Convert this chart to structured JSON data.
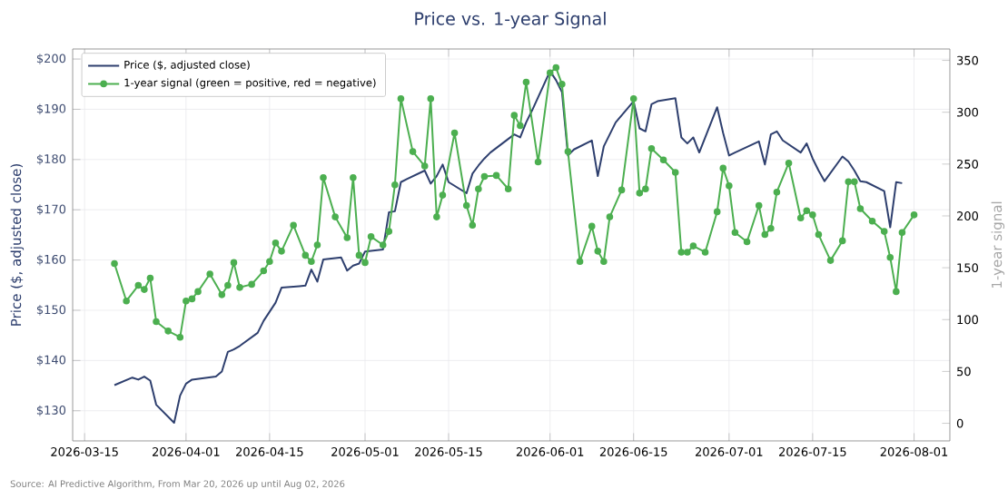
{
  "chart_data": {
    "type": "line",
    "title": "Price vs. 1-year Signal",
    "ylabel": "Price ($, adjusted close)",
    "y2label": "1-year signal",
    "xlim": [
      "2026-03-13",
      "2026-08-07"
    ],
    "xticks": [
      "2026-03-15",
      "2026-04-01",
      "2026-04-15",
      "2026-05-01",
      "2026-05-15",
      "2026-06-01",
      "2026-06-15",
      "2026-07-01",
      "2026-07-15",
      "2026-08-01"
    ],
    "ylim": [
      124,
      202
    ],
    "yticks": [
      {
        "value": 130,
        "label": "$130"
      },
      {
        "value": 140,
        "label": "$140"
      },
      {
        "value": 150,
        "label": "$150"
      },
      {
        "value": 160,
        "label": "$160"
      },
      {
        "value": 170,
        "label": "$170"
      },
      {
        "value": 180,
        "label": "$180"
      },
      {
        "value": 190,
        "label": "$190"
      },
      {
        "value": 200,
        "label": "$200"
      }
    ],
    "y2lim": [
      -17,
      361
    ],
    "y2ticks": [
      0,
      50,
      100,
      150,
      200,
      250,
      300,
      350
    ],
    "grid": true,
    "legend": "top left",
    "annotations": [
      "Source: AI Predictive Algorithm, From Mar 20, 2026 up until Aug 02, 2026"
    ],
    "series": [
      {
        "name": "Price ($, adjusted close)",
        "color": "#2e3f6e",
        "axis": "y",
        "marker": "none",
        "x": [
          "2026-03-20",
          "2026-03-23",
          "2026-03-24",
          "2026-03-25",
          "2026-03-26",
          "2026-03-27",
          "2026-03-30",
          "2026-03-31",
          "2026-04-01",
          "2026-04-02",
          "2026-04-06",
          "2026-04-07",
          "2026-04-08",
          "2026-04-09",
          "2026-04-10",
          "2026-04-13",
          "2026-04-14",
          "2026-04-15",
          "2026-04-16",
          "2026-04-17",
          "2026-04-20",
          "2026-04-21",
          "2026-04-22",
          "2026-04-23",
          "2026-04-24",
          "2026-04-27",
          "2026-04-28",
          "2026-04-29",
          "2026-04-30",
          "2026-05-01",
          "2026-05-04",
          "2026-05-05",
          "2026-05-06",
          "2026-05-07",
          "2026-05-08",
          "2026-05-11",
          "2026-05-12",
          "2026-05-13",
          "2026-05-14",
          "2026-05-15",
          "2026-05-18",
          "2026-05-19",
          "2026-05-20",
          "2026-05-21",
          "2026-05-22",
          "2026-05-26",
          "2026-05-27",
          "2026-05-28",
          "2026-05-29",
          "2026-06-01",
          "2026-06-02",
          "2026-06-03",
          "2026-06-04",
          "2026-06-05",
          "2026-06-08",
          "2026-06-09",
          "2026-06-10",
          "2026-06-11",
          "2026-06-12",
          "2026-06-15",
          "2026-06-16",
          "2026-06-17",
          "2026-06-18",
          "2026-06-19",
          "2026-06-22",
          "2026-06-23",
          "2026-06-24",
          "2026-06-25",
          "2026-06-26",
          "2026-06-29",
          "2026-06-30",
          "2026-07-01",
          "2026-07-02",
          "2026-07-06",
          "2026-07-07",
          "2026-07-08",
          "2026-07-09",
          "2026-07-10",
          "2026-07-13",
          "2026-07-14",
          "2026-07-15",
          "2026-07-16",
          "2026-07-17",
          "2026-07-20",
          "2026-07-21",
          "2026-07-22",
          "2026-07-23",
          "2026-07-24",
          "2026-07-27",
          "2026-07-28",
          "2026-07-29",
          "2026-07-30"
        ],
        "values": [
          135.1,
          136.6,
          136.2,
          136.8,
          136.0,
          131.2,
          127.6,
          133.0,
          135.4,
          136.2,
          136.8,
          137.8,
          141.7,
          142.2,
          142.9,
          145.5,
          147.9,
          149.7,
          151.5,
          154.5,
          154.8,
          154.9,
          158.1,
          155.7,
          160.1,
          160.5,
          157.9,
          158.9,
          159.3,
          161.7,
          162.1,
          169.5,
          169.7,
          175.5,
          176.1,
          177.8,
          175.2,
          176.7,
          179.0,
          175.5,
          173.3,
          177.2,
          178.8,
          180.2,
          181.4,
          185.0,
          184.4,
          187.4,
          189.8,
          197.6,
          195.8,
          193.4,
          180.8,
          182.0,
          183.8,
          176.7,
          182.6,
          185.0,
          187.4,
          191.6,
          186.2,
          185.6,
          191.0,
          191.6,
          192.2,
          184.4,
          183.2,
          184.4,
          181.4,
          190.4,
          185.3,
          180.8,
          181.4,
          183.6,
          179.0,
          185.0,
          185.6,
          183.8,
          181.4,
          183.2,
          180.2,
          177.8,
          175.7,
          180.6,
          179.6,
          177.8,
          175.7,
          175.5,
          173.7,
          166.5,
          175.5,
          175.3
        ]
      },
      {
        "name": "1-year signal (green = positive, red = negative)",
        "color": "#4caf50",
        "axis": "y2",
        "marker": "circle",
        "x": [
          "2026-03-20",
          "2026-03-22",
          "2026-03-24",
          "2026-03-25",
          "2026-03-26",
          "2026-03-27",
          "2026-03-29",
          "2026-03-31",
          "2026-04-01",
          "2026-04-02",
          "2026-04-03",
          "2026-04-05",
          "2026-04-07",
          "2026-04-08",
          "2026-04-09",
          "2026-04-10",
          "2026-04-12",
          "2026-04-14",
          "2026-04-15",
          "2026-04-16",
          "2026-04-17",
          "2026-04-19",
          "2026-04-21",
          "2026-04-22",
          "2026-04-23",
          "2026-04-24",
          "2026-04-26",
          "2026-04-28",
          "2026-04-29",
          "2026-04-30",
          "2026-05-01",
          "2026-05-02",
          "2026-05-04",
          "2026-05-05",
          "2026-05-06",
          "2026-05-07",
          "2026-05-09",
          "2026-05-11",
          "2026-05-12",
          "2026-05-13",
          "2026-05-14",
          "2026-05-16",
          "2026-05-18",
          "2026-05-19",
          "2026-05-20",
          "2026-05-21",
          "2026-05-23",
          "2026-05-25",
          "2026-05-26",
          "2026-05-27",
          "2026-05-28",
          "2026-05-30",
          "2026-06-01",
          "2026-06-02",
          "2026-06-03",
          "2026-06-04",
          "2026-06-06",
          "2026-06-08",
          "2026-06-09",
          "2026-06-10",
          "2026-06-11",
          "2026-06-13",
          "2026-06-15",
          "2026-06-16",
          "2026-06-17",
          "2026-06-18",
          "2026-06-20",
          "2026-06-22",
          "2026-06-23",
          "2026-06-24",
          "2026-06-25",
          "2026-06-27",
          "2026-06-29",
          "2026-06-30",
          "2026-07-01",
          "2026-07-02",
          "2026-07-04",
          "2026-07-06",
          "2026-07-07",
          "2026-07-08",
          "2026-07-09",
          "2026-07-11",
          "2026-07-13",
          "2026-07-14",
          "2026-07-15",
          "2026-07-16",
          "2026-07-18",
          "2026-07-20",
          "2026-07-21",
          "2026-07-22",
          "2026-07-23",
          "2026-07-25",
          "2026-07-27",
          "2026-07-28",
          "2026-07-29",
          "2026-07-30",
          "2026-08-01"
        ],
        "values": [
          154,
          118,
          133,
          129,
          140,
          98,
          89,
          83,
          118,
          120,
          127,
          144,
          124,
          133,
          155,
          131,
          134,
          147,
          156,
          174,
          166,
          191,
          162,
          156,
          172,
          237,
          199,
          179,
          237,
          162,
          155,
          180,
          172,
          185,
          230,
          313,
          262,
          248,
          313,
          199,
          220,
          280,
          210,
          191,
          226,
          238,
          239,
          226,
          297,
          287,
          329,
          252,
          338,
          343,
          327,
          262,
          156,
          190,
          166,
          156,
          199,
          225,
          313,
          222,
          226,
          265,
          254,
          242,
          165,
          165,
          171,
          165,
          204,
          246,
          229,
          184,
          175,
          210,
          182,
          188,
          223,
          251,
          198,
          205,
          201,
          182,
          157,
          176,
          233,
          233,
          207,
          195,
          185,
          160,
          127,
          184,
          201
        ]
      }
    ]
  }
}
